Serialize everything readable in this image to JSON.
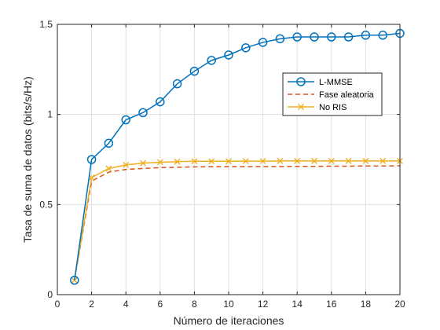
{
  "chart_data": {
    "type": "line",
    "title": "",
    "xlabel": "Número de iteraciones",
    "ylabel": "Tasa de suma de datos (bits/s/Hz)",
    "xlim": [
      0,
      20
    ],
    "ylim": [
      0,
      1.5
    ],
    "xticks": [
      0,
      2,
      4,
      6,
      8,
      10,
      12,
      14,
      16,
      18,
      20
    ],
    "yticks": [
      0,
      0.5,
      1,
      1.5
    ],
    "xtick_labels": [
      "0",
      "2",
      "4",
      "6",
      "8",
      "10",
      "12",
      "14",
      "16",
      "18",
      "20"
    ],
    "ytick_labels": [
      "0",
      "0.5",
      "1",
      "1.5"
    ],
    "grid": true,
    "legend_position": "right",
    "series": [
      {
        "name": "L-MMSE",
        "color": "#0072BD",
        "line": "solid",
        "marker": "circle",
        "x": [
          1,
          2,
          3,
          4,
          5,
          6,
          7,
          8,
          9,
          10,
          11,
          12,
          13,
          14,
          15,
          16,
          17,
          18,
          19,
          20
        ],
        "values": [
          0.08,
          0.75,
          0.84,
          0.97,
          1.01,
          1.07,
          1.17,
          1.24,
          1.3,
          1.33,
          1.37,
          1.4,
          1.42,
          1.43,
          1.43,
          1.43,
          1.43,
          1.44,
          1.44,
          1.45
        ]
      },
      {
        "name": "Fase aleatoria",
        "color": "#D95319",
        "line": "dashed",
        "marker": "none",
        "x": [
          1,
          2,
          3,
          4,
          5,
          6,
          7,
          8,
          9,
          10,
          11,
          12,
          13,
          14,
          15,
          16,
          17,
          18,
          19,
          20
        ],
        "values": [
          0.08,
          0.63,
          0.68,
          0.695,
          0.7,
          0.705,
          0.707,
          0.709,
          0.71,
          0.71,
          0.71,
          0.711,
          0.711,
          0.712,
          0.712,
          0.713,
          0.713,
          0.714,
          0.714,
          0.715
        ]
      },
      {
        "name": "No RIS",
        "color": "#EDB120",
        "line": "solid",
        "marker": "x",
        "x": [
          1,
          2,
          3,
          4,
          5,
          6,
          7,
          8,
          9,
          10,
          11,
          12,
          13,
          14,
          15,
          16,
          17,
          18,
          19,
          20
        ],
        "values": [
          0.08,
          0.65,
          0.7,
          0.72,
          0.73,
          0.735,
          0.738,
          0.74,
          0.74,
          0.74,
          0.741,
          0.741,
          0.742,
          0.742,
          0.742,
          0.742,
          0.742,
          0.742,
          0.742,
          0.742
        ]
      }
    ]
  }
}
